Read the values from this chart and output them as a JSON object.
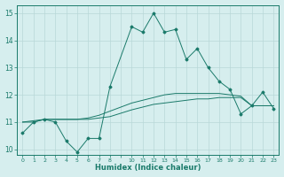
{
  "xlabel": "Humidex (Indice chaleur)",
  "bg_color": "#d6eeee",
  "grid_color": "#b8d8d8",
  "line_color": "#1a7a6a",
  "xlim": [
    -0.5,
    23.5
  ],
  "ylim": [
    9.8,
    15.3
  ],
  "xtick_labels": [
    "0",
    "1",
    "2",
    "3",
    "4",
    "5",
    "6",
    "7",
    "8",
    "",
    "10",
    "11",
    "12",
    "13",
    "14",
    "15",
    "16",
    "17",
    "18",
    "19",
    "20",
    "21",
    "22",
    "23"
  ],
  "yticks": [
    10,
    11,
    12,
    13,
    14,
    15
  ],
  "series1_x": [
    0,
    1,
    2,
    3,
    4,
    5,
    6,
    7,
    8,
    10,
    11,
    12,
    13,
    14,
    15,
    16,
    17,
    18,
    19,
    20,
    21,
    22,
    23
  ],
  "series1_y": [
    10.6,
    11.0,
    11.1,
    11.0,
    10.3,
    9.9,
    10.4,
    10.4,
    12.3,
    14.5,
    14.3,
    15.0,
    14.3,
    14.4,
    13.3,
    13.7,
    13.0,
    12.5,
    12.2,
    11.3,
    11.6,
    12.1,
    11.5
  ],
  "series2_x": [
    0,
    1,
    2,
    3,
    4,
    5,
    6,
    7,
    8,
    10,
    11,
    12,
    13,
    14,
    15,
    16,
    17,
    18,
    19,
    20,
    21,
    22,
    23
  ],
  "series2_y": [
    11.0,
    11.05,
    11.1,
    11.1,
    11.1,
    11.1,
    11.1,
    11.15,
    11.2,
    11.45,
    11.55,
    11.65,
    11.7,
    11.75,
    11.8,
    11.85,
    11.85,
    11.9,
    11.9,
    11.9,
    11.6,
    11.6,
    11.6
  ],
  "series3_x": [
    0,
    1,
    2,
    3,
    4,
    5,
    6,
    7,
    8,
    10,
    11,
    12,
    13,
    14,
    15,
    16,
    17,
    18,
    19,
    20,
    21,
    22,
    23
  ],
  "series3_y": [
    11.0,
    11.0,
    11.1,
    11.1,
    11.1,
    11.1,
    11.15,
    11.25,
    11.4,
    11.7,
    11.8,
    11.9,
    12.0,
    12.05,
    12.05,
    12.05,
    12.05,
    12.05,
    12.0,
    11.95,
    11.6,
    11.6,
    11.6
  ]
}
